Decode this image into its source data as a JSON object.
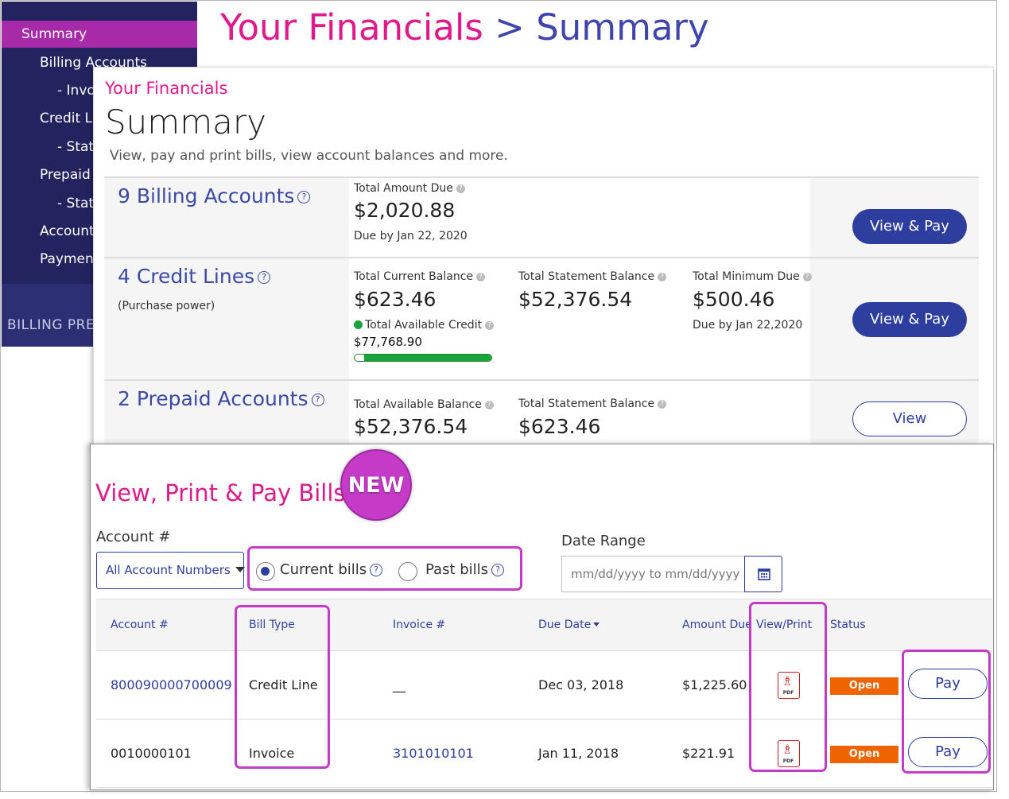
{
  "back": {
    "sidebar": {
      "items": [
        {
          "label": "Summary",
          "active": true
        },
        {
          "label": "Billing Accounts"
        },
        {
          "label": "- Invo"
        },
        {
          "label": "Credit Li"
        },
        {
          "label": "- Stat"
        },
        {
          "label": "Prepaid A"
        },
        {
          "label": "- Stat"
        },
        {
          "label": "Account"
        },
        {
          "label": "Payment"
        }
      ],
      "footer": "BILLING PRE"
    },
    "title_part1": "Your Financials",
    "title_sep": " > ",
    "title_part2": "Summary"
  },
  "summary": {
    "eyebrow": "Your Financials",
    "title": "Summary",
    "subtitle": "View, pay and print bills, view account balances and more.",
    "billing": {
      "heading": "9 Billing Accounts",
      "total_label": "Total Amount Due",
      "total_value": "$2,020.88",
      "due": "Due by Jan 22, 2020",
      "button": "View & Pay"
    },
    "credit": {
      "heading": "4 Credit Lines",
      "note": "(Purchase power)",
      "current_label": "Total Current Balance",
      "current_value": "$623.46",
      "available_label": "Total Available Credit",
      "available_value": "$77,768.90",
      "available_fraction": 0.93,
      "statement_label": "Total Statement Balance",
      "statement_value": "$52,376.54",
      "minimum_label": "Total Minimum Due",
      "minimum_value": "$500.46",
      "minimum_due": "Due by Jan 22,2020",
      "button": "View & Pay"
    },
    "prepaid": {
      "heading": "2 Prepaid Accounts",
      "available_label": "Total Available Balance",
      "available_value": "$52,376.54",
      "statement_label": "Total Statement Balance",
      "statement_value": "$623.46",
      "button": "View"
    }
  },
  "bills": {
    "title": "View, Print & Pay Bills",
    "badge": "NEW",
    "account_label": "Account #",
    "account_select": "All Account Numbers",
    "radio_current": "Current bills",
    "radio_past": "Past bills",
    "date_label": "Date Range",
    "date_placeholder": "mm/dd/yyyy to mm/dd/yyyy",
    "columns": {
      "account": "Account #",
      "bill_type": "Bill Type",
      "invoice": "Invoice #",
      "due_date": "Due Date",
      "amount": "Amount Due",
      "view": "View/Print",
      "status": "Status"
    },
    "rows": [
      {
        "account": "800090000700009",
        "bill_type": "Credit Line",
        "invoice": "__",
        "due_date": "Dec 03, 2018",
        "amount": "$1,225.60",
        "pdf": "PDF",
        "status": "Open",
        "pay": "Pay"
      },
      {
        "account": "0010000101",
        "bill_type": "Invoice",
        "invoice": "3101010101",
        "due_date": "Jan 11, 2018",
        "amount": "$221.91",
        "pdf": "PDF",
        "status": "Open",
        "pay": "Pay"
      }
    ]
  },
  "colors": {
    "magenta": "#e01a8c",
    "navy": "#23235f",
    "blue": "#2d3e9e",
    "highlight": "#c63ac8",
    "status_orange": "#f06400",
    "credit_green": "#19a33a"
  }
}
